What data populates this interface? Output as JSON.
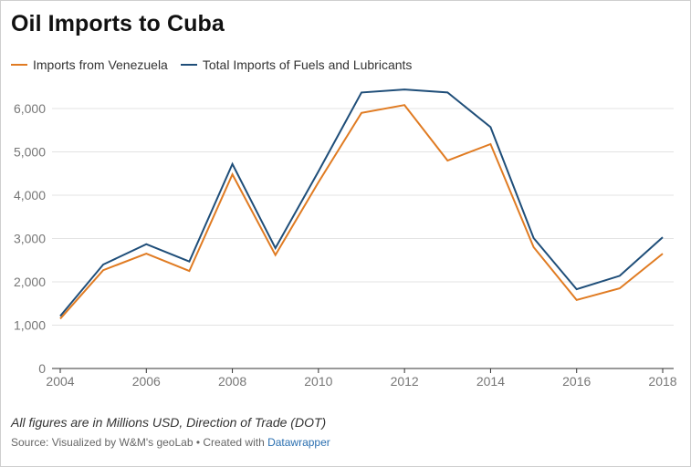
{
  "title": "Oil Imports to Cuba",
  "note": "All figures are in Millions USD, Direction of Trade (DOT)",
  "source": {
    "prefix": "Source: Visualized by W&M's geoLab • Created with ",
    "link_label": "Datawrapper"
  },
  "colors": {
    "venezuela": "#e07b22",
    "total": "#1f4e79",
    "grid": "#e3e3e3",
    "axis": "#333333"
  },
  "chart_data": {
    "type": "line",
    "title": "Oil Imports to Cuba",
    "x": [
      2004,
      2005,
      2006,
      2007,
      2008,
      2009,
      2010,
      2011,
      2012,
      2013,
      2014,
      2015,
      2016,
      2017,
      2018
    ],
    "x_tick_labels": [
      "2004",
      "2006",
      "2008",
      "2010",
      "2012",
      "2014",
      "2016",
      "2018"
    ],
    "y_tick_labels": [
      "0",
      "1,000",
      "2,000",
      "3,000",
      "4,000",
      "5,000",
      "6,000"
    ],
    "y_ticks": [
      0,
      1000,
      2000,
      3000,
      4000,
      5000,
      6000
    ],
    "xlim": [
      2004,
      2018
    ],
    "ylim": [
      0,
      6500
    ],
    "grid": true,
    "legend_position": "top-left",
    "series": [
      {
        "name": "Imports from Venezuela",
        "color": "#e07b22",
        "values": [
          1150,
          2270,
          2650,
          2250,
          4480,
          2620,
          4300,
          5900,
          6080,
          4800,
          5180,
          2800,
          1580,
          1850,
          2650
        ]
      },
      {
        "name": "Total Imports of Fuels and Lubricants",
        "color": "#1f4e79",
        "values": [
          1210,
          2400,
          2870,
          2470,
          4720,
          2780,
          4550,
          6370,
          6440,
          6370,
          5570,
          3010,
          1830,
          2140,
          3030
        ]
      }
    ]
  }
}
